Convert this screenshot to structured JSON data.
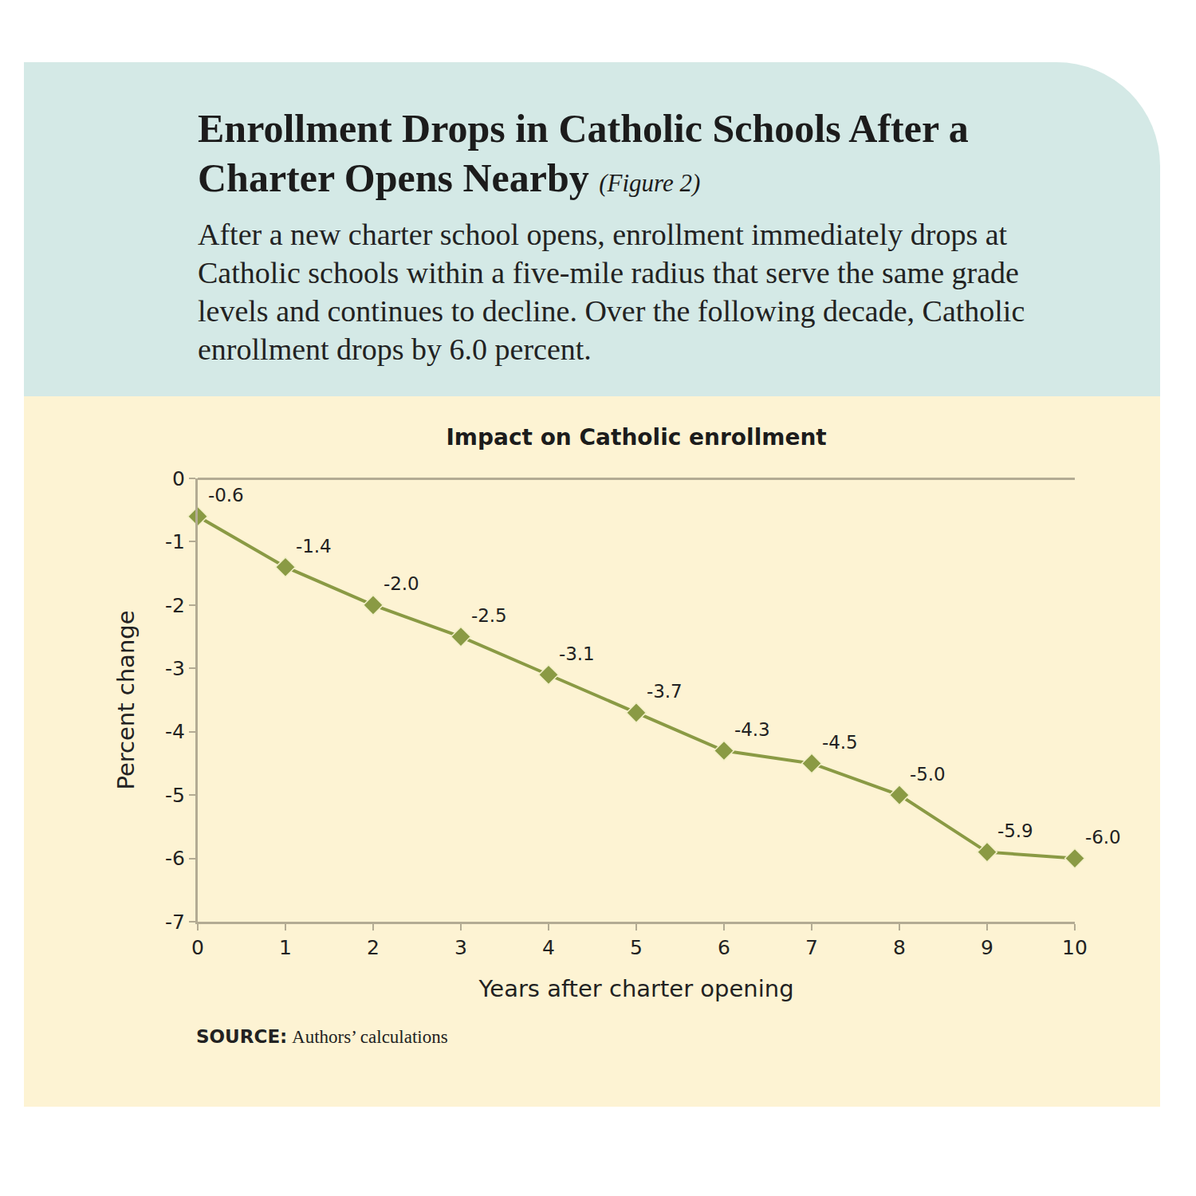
{
  "header": {
    "title": "Enrollment Drops in Catholic Schools After a Charter Opens Nearby",
    "figure_label": "(Figure 2)",
    "description": "After a new charter school opens, enrollment immediately drops at Catholic schools within a five-mile radius that serve the same grade levels and continues to decline. Over the following decade, Catholic enrollment drops by 6.0 percent."
  },
  "chart_data": {
    "type": "line",
    "title": "Impact on Catholic enrollment",
    "x_label": "Years after charter opening",
    "y_label": "Percent change",
    "x": [
      0,
      1,
      2,
      3,
      4,
      5,
      6,
      7,
      8,
      9,
      10
    ],
    "values": [
      -0.6,
      -1.4,
      -2.0,
      -2.5,
      -3.1,
      -3.7,
      -4.3,
      -4.5,
      -5.0,
      -5.9,
      -6.0
    ],
    "value_labels": [
      "-0.6",
      "-1.4",
      "-2.0",
      "-2.5",
      "-3.1",
      "-3.7",
      "-4.3",
      "-4.5",
      "-5.0",
      "-5.9",
      "-6.0"
    ],
    "color": "#8a9a44",
    "marker": "diamond",
    "data_labels": true,
    "grid": false,
    "xlim": [
      0,
      10
    ],
    "xticks": [
      0,
      1,
      2,
      3,
      4,
      5,
      6,
      7,
      8,
      9,
      10
    ],
    "ylim": [
      -7,
      0
    ],
    "yticks": [
      -7,
      -6,
      -5,
      -4,
      -3,
      -2,
      -1,
      0
    ],
    "source_label": "SOURCE:",
    "source": "Authors’ calculations"
  }
}
